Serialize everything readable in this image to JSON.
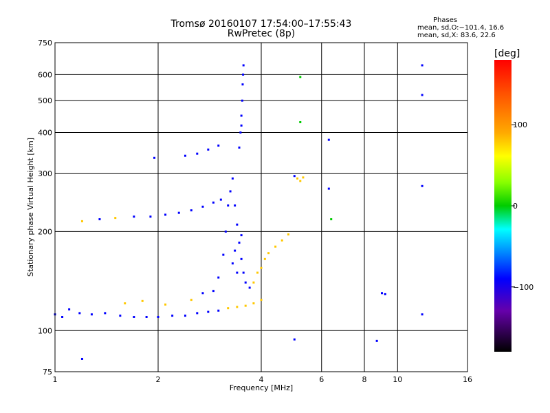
{
  "header": {
    "title": "Tromsø 20160107 17:54:00–17:55:43",
    "subtitle": "RwPretec (8p)"
  },
  "phase_info": {
    "heading": "Phases",
    "line_o": "mean, sd,O:−101.4, 16.6",
    "line_x": "mean, sd,X:  83.6, 22.6"
  },
  "colorbar": {
    "unit": "[deg]",
    "ticks": [
      {
        "value": 100,
        "label": "100"
      },
      {
        "value": 0,
        "label": "0"
      },
      {
        "value": -100,
        "label": "−100"
      }
    ],
    "range": [
      -180,
      180
    ]
  },
  "chart_data": {
    "type": "scatter",
    "xlabel": "Frequency [MHz]",
    "ylabel": "Stationary phase Virtual Height [km]",
    "x_scale": "log",
    "y_scale": "log",
    "xlim": [
      1,
      16
    ],
    "ylim": [
      75,
      750
    ],
    "grid": true,
    "x_ticks": [
      {
        "value": 1,
        "label": "1"
      },
      {
        "value": 2,
        "label": "2"
      },
      {
        "value": 4,
        "label": "4"
      },
      {
        "value": 6,
        "label": "6"
      },
      {
        "value": 8,
        "label": "8"
      },
      {
        "value": 10,
        "label": "10"
      },
      {
        "value": 16,
        "label": "16"
      }
    ],
    "x_gridlines": [
      2,
      4,
      6,
      8,
      10
    ],
    "y_ticks": [
      {
        "value": 75,
        "label": "75"
      },
      {
        "value": 100,
        "label": "100"
      },
      {
        "value": 200,
        "label": "200"
      },
      {
        "value": 300,
        "label": "300"
      },
      {
        "value": 400,
        "label": "400"
      },
      {
        "value": 500,
        "label": "500"
      },
      {
        "value": 600,
        "label": "600"
      },
      {
        "value": 750,
        "label": "750"
      }
    ],
    "y_gridlines": [
      100,
      200,
      300,
      400,
      500,
      600
    ],
    "color_by": "phase_deg",
    "points": [
      {
        "x": 1.0,
        "y": 112,
        "p": -100
      },
      {
        "x": 1.05,
        "y": 110,
        "p": -100
      },
      {
        "x": 1.1,
        "y": 116,
        "p": -100
      },
      {
        "x": 1.18,
        "y": 113,
        "p": -100
      },
      {
        "x": 1.28,
        "y": 112,
        "p": -100
      },
      {
        "x": 1.4,
        "y": 113,
        "p": -100
      },
      {
        "x": 1.55,
        "y": 111,
        "p": -100
      },
      {
        "x": 1.7,
        "y": 110,
        "p": -100
      },
      {
        "x": 1.85,
        "y": 110,
        "p": -100
      },
      {
        "x": 2.0,
        "y": 110,
        "p": -100
      },
      {
        "x": 2.2,
        "y": 111,
        "p": -100
      },
      {
        "x": 2.4,
        "y": 111,
        "p": -100
      },
      {
        "x": 2.6,
        "y": 113,
        "p": -100
      },
      {
        "x": 2.8,
        "y": 114,
        "p": -100
      },
      {
        "x": 3.0,
        "y": 115,
        "p": -100
      },
      {
        "x": 3.2,
        "y": 117,
        "p": 100
      },
      {
        "x": 3.4,
        "y": 118,
        "p": 100
      },
      {
        "x": 3.6,
        "y": 119,
        "p": 100
      },
      {
        "x": 3.8,
        "y": 121,
        "p": 100
      },
      {
        "x": 4.0,
        "y": 124,
        "p": 100
      },
      {
        "x": 1.6,
        "y": 121,
        "p": 100
      },
      {
        "x": 1.8,
        "y": 123,
        "p": 100
      },
      {
        "x": 2.1,
        "y": 120,
        "p": 100
      },
      {
        "x": 2.5,
        "y": 124,
        "p": 100
      },
      {
        "x": 2.7,
        "y": 130,
        "p": -100
      },
      {
        "x": 2.9,
        "y": 132,
        "p": -100
      },
      {
        "x": 3.0,
        "y": 145,
        "p": -100
      },
      {
        "x": 3.1,
        "y": 170,
        "p": -100
      },
      {
        "x": 3.15,
        "y": 200,
        "p": -100
      },
      {
        "x": 3.2,
        "y": 240,
        "p": -100
      },
      {
        "x": 3.25,
        "y": 265,
        "p": -100
      },
      {
        "x": 3.3,
        "y": 290,
        "p": -100
      },
      {
        "x": 3.35,
        "y": 240,
        "p": -100
      },
      {
        "x": 3.4,
        "y": 210,
        "p": -100
      },
      {
        "x": 3.45,
        "y": 185,
        "p": -100
      },
      {
        "x": 3.5,
        "y": 165,
        "p": -100
      },
      {
        "x": 3.55,
        "y": 150,
        "p": -100
      },
      {
        "x": 3.6,
        "y": 140,
        "p": -100
      },
      {
        "x": 3.7,
        "y": 135,
        "p": -100
      },
      {
        "x": 3.3,
        "y": 160,
        "p": -100
      },
      {
        "x": 3.4,
        "y": 150,
        "p": -100
      },
      {
        "x": 3.5,
        "y": 195,
        "p": -100
      },
      {
        "x": 3.35,
        "y": 175,
        "p": -100
      },
      {
        "x": 3.45,
        "y": 360,
        "p": -100
      },
      {
        "x": 3.48,
        "y": 400,
        "p": -100
      },
      {
        "x": 3.5,
        "y": 450,
        "p": -100
      },
      {
        "x": 3.52,
        "y": 500,
        "p": -100
      },
      {
        "x": 3.53,
        "y": 560,
        "p": -100
      },
      {
        "x": 3.55,
        "y": 640,
        "p": -100
      },
      {
        "x": 3.5,
        "y": 420,
        "p": -100
      },
      {
        "x": 3.54,
        "y": 600,
        "p": -100
      },
      {
        "x": 1.2,
        "y": 215,
        "p": 100
      },
      {
        "x": 1.35,
        "y": 218,
        "p": -100
      },
      {
        "x": 1.5,
        "y": 220,
        "p": 100
      },
      {
        "x": 1.7,
        "y": 222,
        "p": -100
      },
      {
        "x": 1.9,
        "y": 222,
        "p": -100
      },
      {
        "x": 2.1,
        "y": 225,
        "p": -100
      },
      {
        "x": 2.3,
        "y": 228,
        "p": -100
      },
      {
        "x": 2.5,
        "y": 232,
        "p": -100
      },
      {
        "x": 2.7,
        "y": 238,
        "p": -100
      },
      {
        "x": 2.9,
        "y": 245,
        "p": -100
      },
      {
        "x": 3.05,
        "y": 250,
        "p": -100
      },
      {
        "x": 2.4,
        "y": 340,
        "p": -100
      },
      {
        "x": 2.6,
        "y": 345,
        "p": -100
      },
      {
        "x": 2.8,
        "y": 355,
        "p": -100
      },
      {
        "x": 3.0,
        "y": 365,
        "p": -100
      },
      {
        "x": 1.95,
        "y": 335,
        "p": -100
      },
      {
        "x": 3.8,
        "y": 140,
        "p": 100
      },
      {
        "x": 3.9,
        "y": 150,
        "p": 100
      },
      {
        "x": 4.0,
        "y": 155,
        "p": 100
      },
      {
        "x": 4.1,
        "y": 165,
        "p": 100
      },
      {
        "x": 4.2,
        "y": 172,
        "p": 100
      },
      {
        "x": 4.4,
        "y": 180,
        "p": 100
      },
      {
        "x": 4.6,
        "y": 188,
        "p": 100
      },
      {
        "x": 4.8,
        "y": 196,
        "p": 100
      },
      {
        "x": 5.1,
        "y": 290,
        "p": 100
      },
      {
        "x": 5.2,
        "y": 285,
        "p": 100
      },
      {
        "x": 5.3,
        "y": 292,
        "p": 100
      },
      {
        "x": 5.0,
        "y": 295,
        "p": -100
      },
      {
        "x": 6.3,
        "y": 270,
        "p": -100
      },
      {
        "x": 6.4,
        "y": 218,
        "p": 0
      },
      {
        "x": 6.3,
        "y": 380,
        "p": -100
      },
      {
        "x": 9.0,
        "y": 130,
        "p": -100
      },
      {
        "x": 9.2,
        "y": 129,
        "p": -100
      },
      {
        "x": 11.8,
        "y": 640,
        "p": -100
      },
      {
        "x": 11.8,
        "y": 520,
        "p": -100
      },
      {
        "x": 11.8,
        "y": 275,
        "p": -100
      },
      {
        "x": 11.8,
        "y": 112,
        "p": -100
      },
      {
        "x": 8.7,
        "y": 93,
        "p": -100
      },
      {
        "x": 5.0,
        "y": 94,
        "p": -100
      },
      {
        "x": 5.2,
        "y": 430,
        "p": 0
      },
      {
        "x": 5.2,
        "y": 590,
        "p": 0
      },
      {
        "x": 1.2,
        "y": 82,
        "p": -100
      }
    ]
  }
}
